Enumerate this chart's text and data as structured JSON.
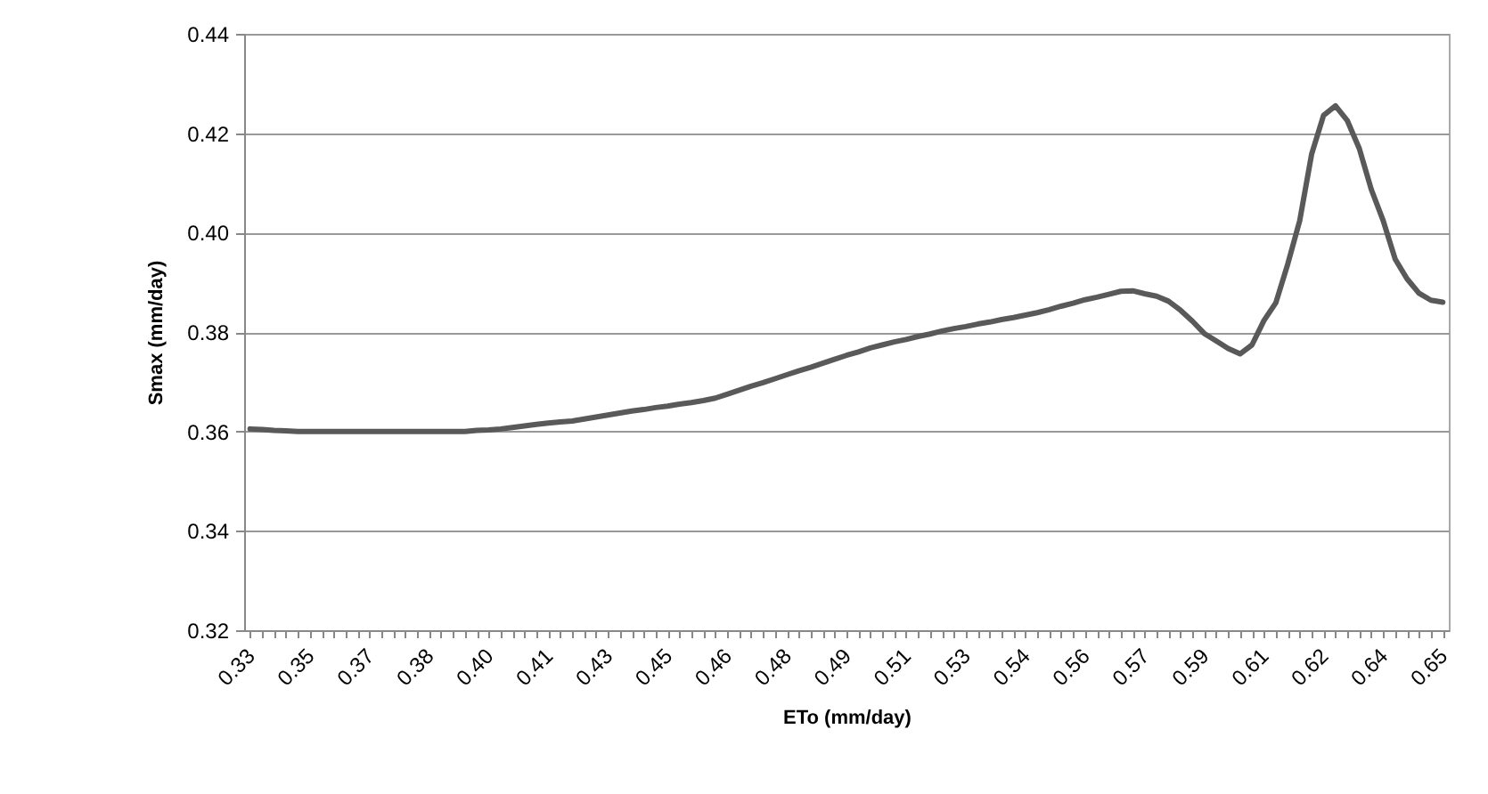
{
  "chart_data": {
    "type": "line",
    "xlabel": "ETo (mm/day)",
    "ylabel": "Smax (mm/day)",
    "categories": [
      "0.33",
      null,
      null,
      null,
      null,
      "0.35",
      null,
      null,
      null,
      null,
      "0.37",
      null,
      null,
      null,
      null,
      "0.38",
      null,
      null,
      null,
      null,
      "0.40",
      null,
      null,
      null,
      null,
      "0.41",
      null,
      null,
      null,
      null,
      "0.43",
      null,
      null,
      null,
      null,
      "0.45",
      null,
      null,
      null,
      null,
      "0.46",
      null,
      null,
      null,
      null,
      "0.48",
      null,
      null,
      null,
      null,
      "0.49",
      null,
      null,
      null,
      null,
      "0.51",
      null,
      null,
      null,
      null,
      "0.53",
      null,
      null,
      null,
      null,
      "0.54",
      null,
      null,
      null,
      null,
      "0.56",
      null,
      null,
      null,
      null,
      "0.57",
      null,
      null,
      null,
      null,
      "0.59",
      null,
      null,
      null,
      null,
      "0.61",
      null,
      null,
      null,
      null,
      "0.62",
      null,
      null,
      null,
      null,
      "0.64",
      null,
      null,
      null,
      null,
      "0.65"
    ],
    "series": [
      {
        "color": "#595959",
        "values": [
          0.3605,
          0.3604,
          0.3602,
          0.3601,
          0.36,
          0.36,
          0.36,
          0.36,
          0.36,
          0.36,
          0.36,
          0.36,
          0.36,
          0.36,
          0.36,
          0.36,
          0.36,
          0.36,
          0.36,
          0.3602,
          0.3603,
          0.3605,
          0.3608,
          0.3611,
          0.3614,
          0.3617,
          0.3619,
          0.3621,
          0.3625,
          0.3629,
          0.3633,
          0.3637,
          0.3641,
          0.3644,
          0.3648,
          0.3651,
          0.3655,
          0.3658,
          0.3662,
          0.3667,
          0.3675,
          0.3683,
          0.3691,
          0.3698,
          0.3706,
          0.3714,
          0.3722,
          0.3729,
          0.3737,
          0.3745,
          0.3753,
          0.376,
          0.3768,
          0.3774,
          0.378,
          0.3785,
          0.3791,
          0.3796,
          0.3802,
          0.3807,
          0.3811,
          0.3816,
          0.382,
          0.3825,
          0.3829,
          0.3834,
          0.3839,
          0.3845,
          0.3852,
          0.3858,
          0.3865,
          0.387,
          0.3876,
          0.3882,
          0.3883,
          0.3877,
          0.3872,
          0.3862,
          0.3844,
          0.3822,
          0.3797,
          0.3782,
          0.3767,
          0.3756,
          0.3774,
          0.3823,
          0.3859,
          0.3937,
          0.4024,
          0.4158,
          0.4236,
          0.4255,
          0.4225,
          0.4169,
          0.4087,
          0.4024,
          0.3947,
          0.3907,
          0.3878,
          0.3864,
          0.386
        ]
      }
    ],
    "ylim": [
      0.32,
      0.44
    ],
    "yticks": [
      {
        "value": 0.32,
        "label": "0.32"
      },
      {
        "value": 0.34,
        "label": "0.34"
      },
      {
        "value": 0.36,
        "label": "0.36"
      },
      {
        "value": 0.38,
        "label": "0.38"
      },
      {
        "value": 0.4,
        "label": "0.40"
      },
      {
        "value": 0.42,
        "label": "0.42"
      },
      {
        "value": 0.44,
        "label": "0.44"
      }
    ],
    "grid": "y",
    "legend": false,
    "marker": "none",
    "line_style": "solid"
  }
}
